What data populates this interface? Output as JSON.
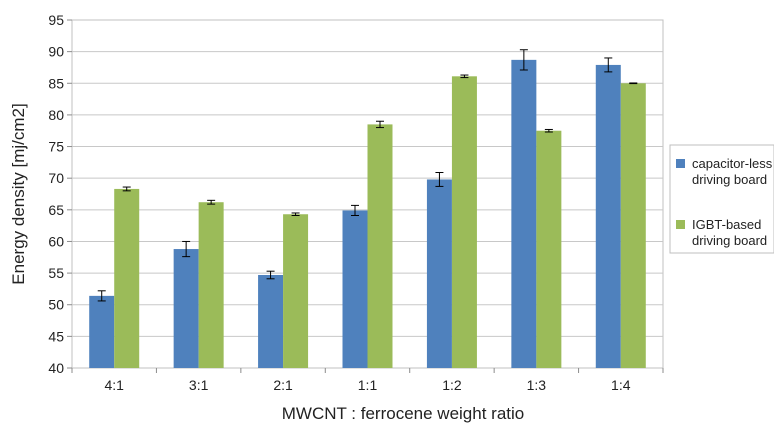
{
  "chart_data": {
    "type": "bar",
    "xlabel": "MWCNT : ferrocene weight ratio",
    "ylabel": "Energy density [mj/cm2]",
    "ylim": [
      40,
      95
    ],
    "yticks": [
      40,
      45,
      50,
      55,
      60,
      65,
      70,
      75,
      80,
      85,
      90,
      95
    ],
    "grid": "horizontal",
    "legend_position": "right",
    "categories": [
      "4:1",
      "3:1",
      "2:1",
      "1:1",
      "1:2",
      "1:3",
      "1:4"
    ],
    "series": [
      {
        "name": "capacitor-less driving board",
        "legend_lines": [
          "capacitor-less",
          "driving board"
        ],
        "color": "#4f81bd",
        "values": [
          51.4,
          58.8,
          54.7,
          64.9,
          69.8,
          88.7,
          87.9
        ],
        "errors": [
          0.8,
          1.2,
          0.6,
          0.8,
          1.1,
          1.6,
          1.1
        ]
      },
      {
        "name": "IGBT-based driving board",
        "legend_lines": [
          "IGBT-based",
          "driving board"
        ],
        "color": "#9bbb59",
        "values": [
          68.3,
          66.2,
          64.3,
          78.5,
          86.1,
          77.5,
          85.0
        ],
        "errors": [
          0.3,
          0.3,
          0.2,
          0.5,
          0.2,
          0.2,
          0.05
        ]
      }
    ]
  }
}
